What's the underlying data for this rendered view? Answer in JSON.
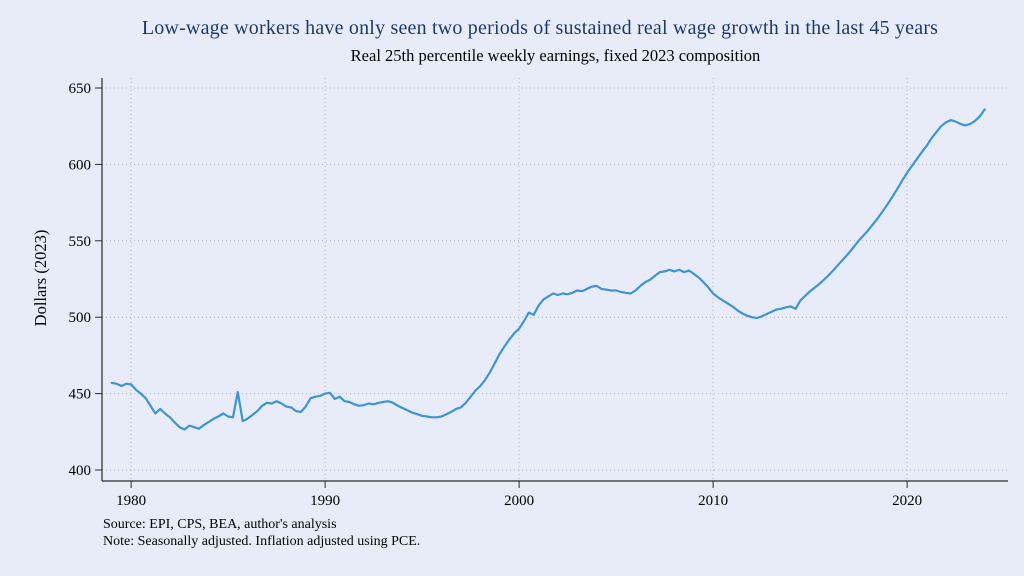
{
  "figure": {
    "title": "Low-wage workers have only seen two periods of sustained real wage growth in the last 45 years",
    "subtitle": "Real 25th percentile weekly earnings, fixed 2023 composition",
    "source_note": "Source: EPI, CPS, BEA, author's analysis",
    "method_note": "Note: Seasonally adjusted. Inflation adjusted using PCE."
  },
  "colors": {
    "background": "#e7ecf8",
    "title": "#1b3a6d",
    "text": "#000000",
    "line": "#3e95cf",
    "grid": "#b3b8c2",
    "axis": "#2b2b2b"
  },
  "chart_data": {
    "type": "line",
    "title": "Low-wage workers have only seen two periods of sustained real wage growth in the last 45 years",
    "subtitle": "Real 25th percentile weekly earnings, fixed 2023 composition",
    "xlabel": "",
    "ylabel": "Dollars (2023)",
    "ylim": [
      400,
      650
    ],
    "xlim": [
      1978.5,
      2025.2
    ],
    "y_ticks": [
      400,
      450,
      500,
      550,
      600,
      650
    ],
    "x_ticks": [
      1980,
      1990,
      2000,
      2010,
      2020
    ],
    "grid": true,
    "legend_position": "none",
    "series": [
      {
        "name": "Real 25th percentile weekly earnings",
        "x_start": 1979.0,
        "x_step": 0.25,
        "values": [
          457,
          456.5,
          455,
          456.5,
          456,
          452.5,
          450,
          447,
          442,
          437,
          440,
          437,
          434.5,
          431,
          428,
          426.5,
          429,
          428,
          427,
          429.5,
          431.5,
          433.5,
          435,
          437,
          435,
          434.5,
          451,
          432,
          433.5,
          436,
          438.5,
          442,
          444,
          443.5,
          445,
          443.5,
          441.5,
          441,
          438.5,
          438,
          441.5,
          447,
          448,
          448.5,
          450,
          450.5,
          446.5,
          448,
          445,
          444.5,
          443,
          442,
          442.5,
          443.5,
          443,
          444,
          444.5,
          445,
          444,
          442,
          440.5,
          439,
          437.5,
          436.5,
          435.5,
          435,
          434.5,
          434.5,
          435,
          436.5,
          438,
          440,
          441,
          444,
          448,
          452,
          455,
          459,
          464,
          470,
          476,
          481,
          485.5,
          489.5,
          492.5,
          497.5,
          503,
          501.5,
          507.5,
          511.5,
          513.5,
          515.5,
          514.5,
          515.5,
          515,
          516,
          517.5,
          517,
          518.5,
          520,
          520.5,
          518.5,
          518,
          517.5,
          517.5,
          516.5,
          516,
          515.5,
          517.5,
          520.5,
          523,
          524.5,
          527,
          529.5,
          530,
          531,
          530,
          531,
          529.5,
          530.5,
          528.5,
          526,
          523,
          519.5,
          515.5,
          513,
          511,
          509,
          507,
          504.5,
          502.5,
          501,
          500,
          499.5,
          500.5,
          502,
          503.5,
          505,
          505.5,
          506.5,
          507,
          505.5,
          511,
          514,
          517,
          519.5,
          522,
          525,
          528,
          531.5,
          535,
          538.5,
          542,
          546,
          550,
          553.5,
          557,
          561,
          565,
          569.5,
          574,
          579,
          584,
          589.5,
          594.5,
          599,
          603.5,
          608,
          612,
          617,
          621,
          625,
          627.5,
          629,
          628,
          626.5,
          625.5,
          626.5,
          628.5,
          631.5,
          636
        ]
      }
    ]
  }
}
